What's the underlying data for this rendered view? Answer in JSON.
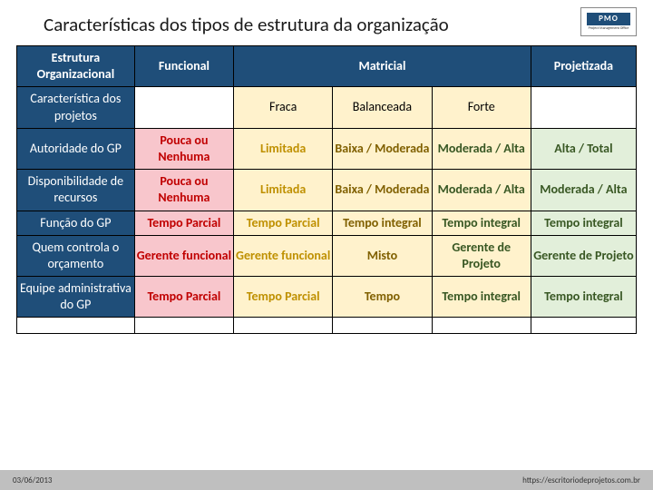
{
  "title": "Características dos tipos de estrutura da organização",
  "logo": {
    "text": "PMO",
    "sub": "Project Management Office"
  },
  "footer": {
    "left": "03/06/2013",
    "right": "https://escritoriodeprojetos.com.br"
  },
  "colors": {
    "header_bg": "#1f4e79",
    "header_fg": "#ffffff",
    "func_bg": "#f8c6cc",
    "func_fg": "#c00000",
    "matr_bg": "#fff2cc",
    "m1_fg": "#bf9000",
    "m2_fg": "#806000",
    "m3_fg": "#385723",
    "proj_bg": "#e2efda",
    "proj_fg": "#385723",
    "footer_bg": "#bfbfbf",
    "border": "#000000"
  },
  "table": {
    "header1": [
      "Estrutura Organizacional",
      "Funcional",
      "Matricial",
      "Projetizada"
    ],
    "subheader": [
      "Característica dos projetos",
      "",
      "Fraca",
      "Balanceada",
      "Forte",
      ""
    ],
    "rows": [
      {
        "label": "Autoridade do GP",
        "func": "Pouca ou Nenhuma",
        "m1": "Limitada",
        "m2": "Baixa / Moderada",
        "m3": "Moderada / Alta",
        "proj": "Alta / Total"
      },
      {
        "label": "Disponibilidade de recursos",
        "func": "Pouca ou Nenhuma",
        "m1": "Limitada",
        "m2": "Baixa / Moderada",
        "m3": "Moderada / Alta",
        "proj": "Moderada / Alta"
      },
      {
        "label": "Função do GP",
        "func": "Tempo Parcial",
        "m1": "Tempo Parcial",
        "m2": "Tempo integral",
        "m3": "Tempo integral",
        "proj": "Tempo integral"
      },
      {
        "label": "Quem controla o orçamento",
        "func": "Gerente funcional",
        "m1": "Gerente funcional",
        "m2": "Misto",
        "m3": "Gerente de Projeto",
        "proj": "Gerente de Projeto"
      },
      {
        "label": "Equipe administrativa do GP",
        "func": "Tempo Parcial",
        "m1": "Tempo Parcial",
        "m2": "Tempo",
        "m3": "Tempo integral",
        "proj": "Tempo integral"
      }
    ]
  }
}
